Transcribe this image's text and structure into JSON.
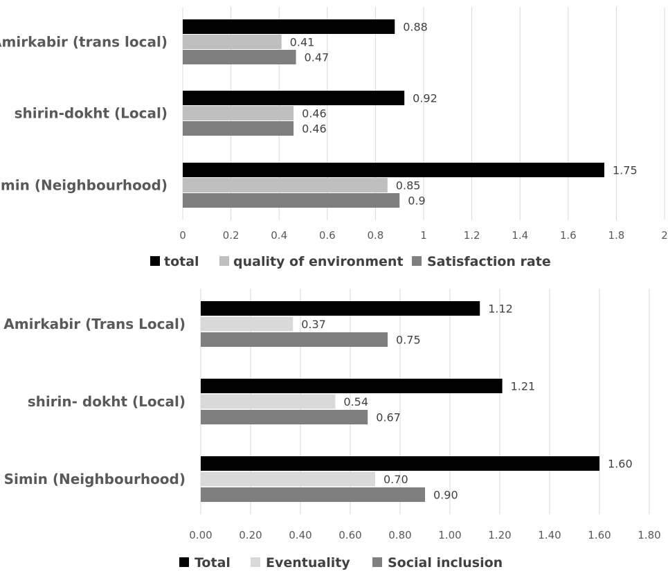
{
  "chart_data": [
    {
      "type": "bar",
      "orientation": "horizontal",
      "categories": [
        "Amirkabir (trans local)",
        "shirin-dokht (Local)",
        "simin (Neighbourhood)"
      ],
      "series": [
        {
          "name": "total",
          "values": [
            0.88,
            0.92,
            1.75
          ],
          "labels": [
            "0.88",
            "0.92",
            "1.75"
          ],
          "color": "#000000"
        },
        {
          "name": "quality of environment",
          "values": [
            0.41,
            0.46,
            0.85
          ],
          "labels": [
            "0.41",
            "0.46",
            "0.85"
          ],
          "color": "#bfbfbf"
        },
        {
          "name": "Satisfaction rate",
          "values": [
            0.47,
            0.46,
            0.9
          ],
          "labels": [
            "0.47",
            "0.46",
            "0.9"
          ],
          "color": "#7f7f7f"
        }
      ],
      "xlim": [
        0,
        2
      ],
      "tick_labels": [
        "0",
        "0.2",
        "0.4",
        "0.6",
        "0.8",
        "1",
        "1.2",
        "1.4",
        "1.6",
        "1.8",
        "2"
      ],
      "grid": "vertical",
      "legend": "bottom"
    },
    {
      "type": "bar",
      "orientation": "horizontal",
      "categories": [
        "Amirkabir (Trans Local)",
        "shirin- dokht (Local)",
        "Simin (Neighbourhood)"
      ],
      "series": [
        {
          "name": "Total",
          "values": [
            1.12,
            1.21,
            1.6
          ],
          "labels": [
            "1.12",
            "1.21",
            "1.60"
          ],
          "color": "#000000"
        },
        {
          "name": "Eventuality",
          "values": [
            0.37,
            0.54,
            0.7
          ],
          "labels": [
            "0.37",
            "0.54",
            "0.70"
          ],
          "color": "#d9d9d9"
        },
        {
          "name": "Social inclusion",
          "values": [
            0.75,
            0.67,
            0.9
          ],
          "labels": [
            "0.75",
            "0.67",
            "0.90"
          ],
          "color": "#7f7f7f"
        }
      ],
      "xlim": [
        0,
        1.8
      ],
      "tick_labels": [
        "0.00",
        "0.20",
        "0.40",
        "0.60",
        "0.80",
        "1.00",
        "1.20",
        "1.40",
        "1.60",
        "1.80"
      ],
      "grid": "vertical",
      "legend": "bottom"
    }
  ]
}
